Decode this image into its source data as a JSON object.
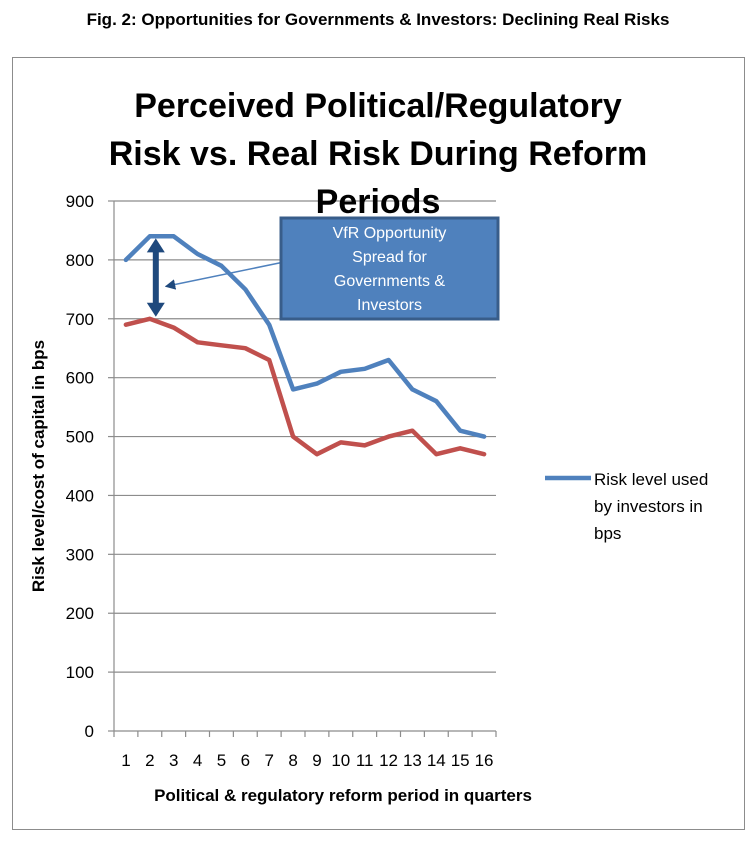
{
  "figure_caption": "Fig. 2: Opportunities for Governments & Investors: Declining Real Risks",
  "chart_data": {
    "type": "line",
    "title_lines": [
      "Perceived Political/Regulatory",
      "Risk vs. Real Risk During Reform",
      "Periods"
    ],
    "xlabel": "Political & regulatory reform period in quarters",
    "ylabel": "Risk level/cost of capital in bps",
    "categories": [
      "1",
      "2",
      "3",
      "4",
      "5",
      "6",
      "7",
      "8",
      "9",
      "10",
      "11",
      "12",
      "13",
      "14",
      "15",
      "16"
    ],
    "ylim": [
      0,
      900
    ],
    "yticks": [
      "0",
      "100",
      "200",
      "300",
      "400",
      "500",
      "600",
      "700",
      "800",
      "900"
    ],
    "grid": "horizontal",
    "legend_position": "right",
    "series": [
      {
        "name": "Risk level used by investors in bps",
        "legend_lines": [
          "Risk level used",
          "by investors in",
          "bps"
        ],
        "color": "#4f81bd",
        "values": [
          800,
          840,
          840,
          810,
          790,
          750,
          690,
          580,
          590,
          610,
          615,
          630,
          580,
          560,
          510,
          500
        ]
      },
      {
        "color": "#c0504d",
        "values": [
          690,
          700,
          685,
          660,
          655,
          650,
          630,
          500,
          470,
          490,
          485,
          500,
          510,
          470,
          480,
          470
        ]
      }
    ],
    "annotation": {
      "lines": [
        "VfR Opportunity",
        "Spread for",
        "Governments &",
        "Investors"
      ],
      "box_color": "#4f81bd",
      "arrow_color": "#1f497d",
      "spread_at_category": "2"
    }
  }
}
